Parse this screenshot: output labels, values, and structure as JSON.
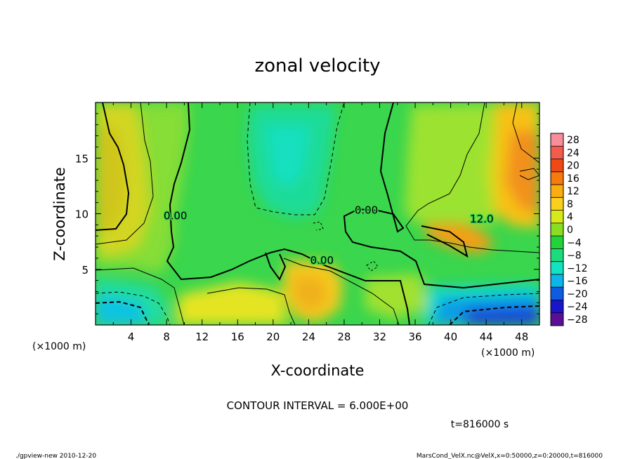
{
  "chart_data": {
    "type": "heatmap",
    "title": "zonal velocity",
    "xlabel": "X-coordinate",
    "ylabel": "Z-coordinate",
    "x_unit_left": "(×1000 m)",
    "x_unit_right": "(×1000 m)",
    "y_unit": "(×1000 m)",
    "xlim": [
      0,
      50
    ],
    "ylim": [
      0,
      20
    ],
    "x_ticks": [
      4,
      8,
      12,
      16,
      20,
      24,
      28,
      32,
      36,
      40,
      44,
      48
    ],
    "y_ticks": [
      5,
      10,
      15
    ],
    "contour_interval_text": "CONTOUR INTERVAL = 6.000E+00",
    "contour_interval": 6,
    "time_text": "t=816000 s",
    "contour_labels": [
      {
        "text": "0.00",
        "x": 9.0,
        "z": 9.5
      },
      {
        "text": "0.00",
        "x": 30.5,
        "z": 10.0
      },
      {
        "text": "0.00",
        "x": 25.5,
        "z": 5.5
      },
      {
        "text": "12.0",
        "x": 43.5,
        "z": 9.2
      }
    ],
    "colorbar": {
      "levels": [
        28,
        24,
        20,
        16,
        12,
        8,
        4,
        0,
        -4,
        -8,
        -12,
        -16,
        -20,
        -24,
        -28
      ],
      "labels": [
        "28",
        "24",
        "20",
        "16",
        "12",
        "8",
        "4",
        "0",
        "−4",
        "−8",
        "−12",
        "−16",
        "−20",
        "−24",
        "−28"
      ],
      "colors": [
        "#f78e9a",
        "#f25c4d",
        "#ef4a16",
        "#f67a0c",
        "#f9ad10",
        "#fad01c",
        "#d6e91b",
        "#89dd22",
        "#23d33a",
        "#1ddc7d",
        "#12e3c1",
        "#0cb5ea",
        "#0f5be1",
        "#1a15c8",
        "#5b0f96"
      ]
    }
  },
  "footer": {
    "left": "./gpview-new   2010-12-20",
    "right": "MarsCond_VelX.nc@VelX,x=0:50000,z=0:20000,t=816000"
  }
}
